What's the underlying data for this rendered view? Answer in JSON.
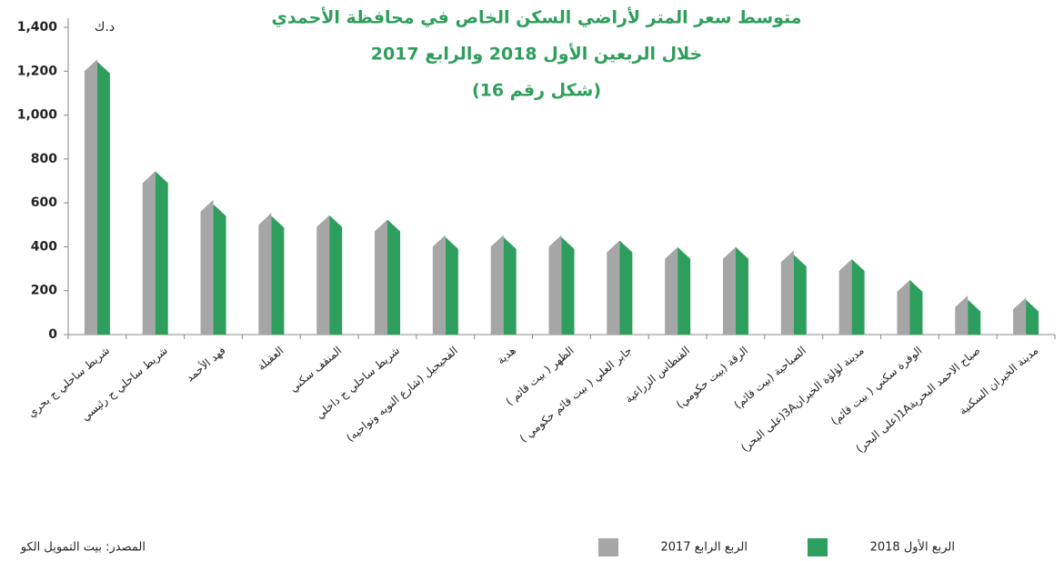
{
  "chart_data": {
    "type": "bar",
    "title_lines": [
      "متوسط سعر المتر لأراضي السكن الخاص في محافظة الأحمدي",
      "خلال الربعين الأول 2018 والرابع 2017",
      "(شكل رقم 16)"
    ],
    "unit": "د.ك",
    "source": "المصدر: بيت التمويل الكو",
    "categories": [
      "شريط ساحلي ج بحري",
      "شريط ساحلي ج رئيسي",
      "فهد الأحمد",
      "العقيلة",
      "المنقف سكني",
      "شريط ساحلي ج داخلي",
      "الفحيحيل (شارع النويه ونواحيه)",
      "هدية",
      "الظهر ( بيت قائم )",
      "جابر العلي ( بيت قائم حكومي )",
      "الفنطاس الزراعية",
      "الرقة (بيت حكومي)",
      "الصباحية (بيت قائم)",
      "مدينة لؤلؤة الخيران3A(على البحر)",
      "الوفرة سكني ( بيت قائم)",
      "صباح الاحمد البحرية1A(على البحر)",
      "مدينة الخيران السكنية"
    ],
    "series": [
      {
        "name": "الربع الرابع 2017",
        "color": "#a6a6a6",
        "values": [
          1200,
          690,
          560,
          500,
          490,
          470,
          400,
          400,
          400,
          375,
          345,
          345,
          330,
          290,
          195,
          125,
          115
        ]
      },
      {
        "name": "الربع الأول 2018",
        "color": "#2e9e5e",
        "values": [
          1190,
          690,
          540,
          487,
          490,
          470,
          390,
          390,
          390,
          375,
          345,
          345,
          310,
          290,
          195,
          105,
          105
        ]
      }
    ],
    "ylim": [
      0,
      1400
    ],
    "yticks": [
      0,
      200,
      400,
      600,
      800,
      {
        "value": 1000,
        "label": "1,000"
      },
      {
        "value": 1200,
        "label": "1,200"
      },
      {
        "value": 1400,
        "label": "1,400"
      }
    ],
    "grid": false
  }
}
